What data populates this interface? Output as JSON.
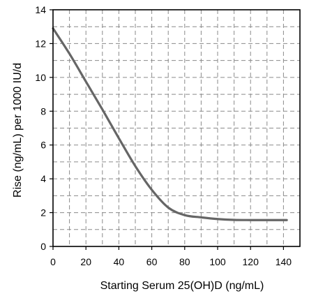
{
  "chart_data": {
    "type": "line",
    "title": "",
    "xlabel": "Starting Serum 25(OH)D (ng/mL)",
    "ylabel": "Rise (ng/mL) per 1000 IU/d",
    "xlim": [
      0,
      150
    ],
    "ylim": [
      0,
      14
    ],
    "x_ticks": [
      0,
      20,
      40,
      60,
      80,
      100,
      120,
      140
    ],
    "y_ticks": [
      0,
      2,
      4,
      6,
      8,
      10,
      12,
      14
    ],
    "grid": "dashed, every 10 ng/mL on x and every 1 ng/mL on y",
    "line_color": "#666666",
    "series": [
      {
        "x": [
          0,
          10,
          20,
          30,
          40,
          50,
          60,
          70,
          80,
          90,
          100,
          110,
          120,
          130,
          142
        ],
        "y": [
          12.9,
          11.4,
          9.75,
          8.1,
          6.4,
          4.75,
          3.35,
          2.3,
          1.85,
          1.72,
          1.62,
          1.57,
          1.56,
          1.56,
          1.56
        ]
      }
    ]
  }
}
